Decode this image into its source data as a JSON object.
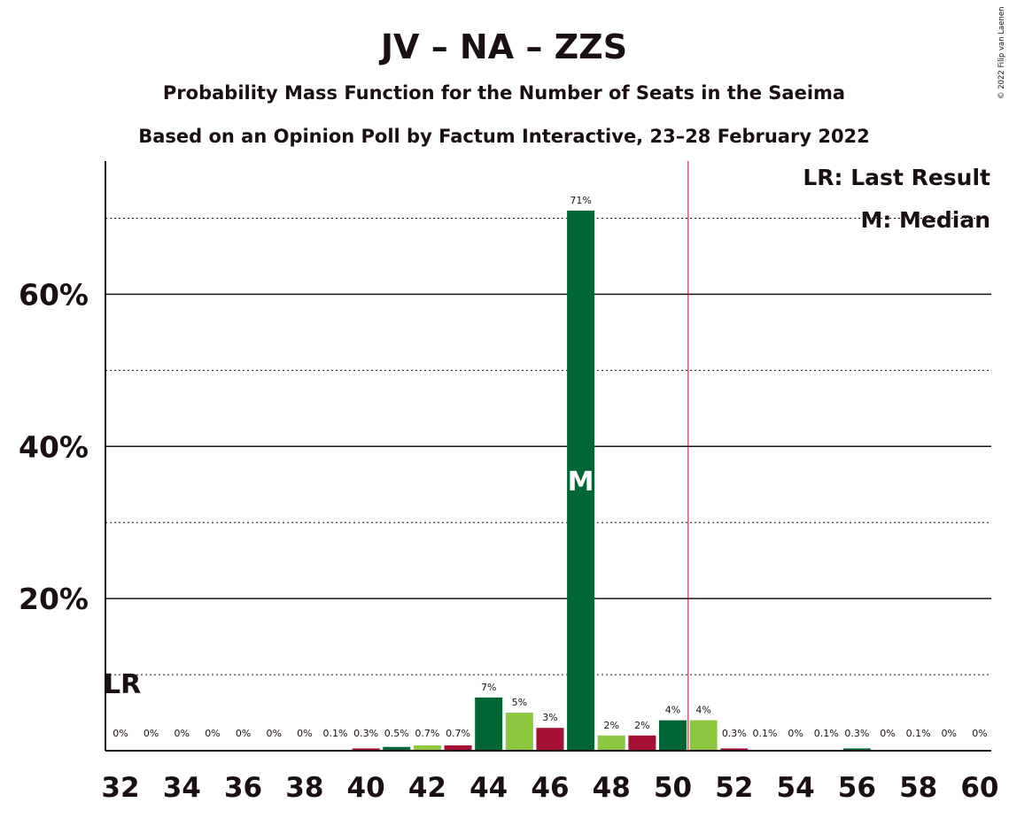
{
  "chart_data": {
    "type": "bar",
    "title": "JV – NA – ZZS",
    "subtitle": "Probability Mass Function for the Number of Seats in the Saeima",
    "subtitle2": "Based on an Opinion Poll by Factum Interactive, 23–28 February 2022",
    "copyright": "© 2022 Filip van Laenen",
    "ylim": [
      0,
      77.5
    ],
    "yticks_major": [
      20,
      40,
      60
    ],
    "ytick_labels": [
      "20%",
      "40%",
      "60%"
    ],
    "yticks_minor": [
      10,
      30,
      50,
      70
    ],
    "xtick_labels": [
      "32",
      "34",
      "36",
      "38",
      "40",
      "42",
      "44",
      "46",
      "48",
      "50",
      "52",
      "54",
      "56",
      "58",
      "60"
    ],
    "categories": [
      32,
      33,
      34,
      35,
      36,
      37,
      38,
      39,
      40,
      41,
      42,
      43,
      44,
      45,
      46,
      47,
      48,
      49,
      50,
      51,
      52,
      53,
      54,
      55,
      56,
      57,
      58,
      59,
      60
    ],
    "values": [
      0,
      0,
      0,
      0,
      0,
      0,
      0,
      0.1,
      0.3,
      0.5,
      0.7,
      0.7,
      7,
      5,
      3,
      71,
      2,
      2,
      4,
      4,
      0.3,
      0.1,
      0,
      0.1,
      0.3,
      0,
      0.1,
      0,
      0
    ],
    "labels": [
      "0%",
      "0%",
      "0%",
      "0%",
      "0%",
      "0%",
      "0%",
      "0.1%",
      "0.3%",
      "0.5%",
      "0.7%",
      "0.7%",
      "7%",
      "5%",
      "3%",
      "71%",
      "2%",
      "2%",
      "4%",
      "4%",
      "0.3%",
      "0.1%",
      "0%",
      "0.1%",
      "0.3%",
      "0%",
      "0.1%",
      "0%",
      "0%"
    ],
    "bar_colors": [
      "#006633",
      "#8dc63f",
      "#a50f34"
    ],
    "last_result": {
      "seat": 32,
      "label": "LR"
    },
    "median": {
      "seat": 47,
      "label": "M"
    },
    "majority_line_after_seat": 50,
    "majority_color": "#a50f34",
    "legend": [
      "LR: Last Result",
      "M: Median"
    ],
    "legend_position": "top-right"
  }
}
